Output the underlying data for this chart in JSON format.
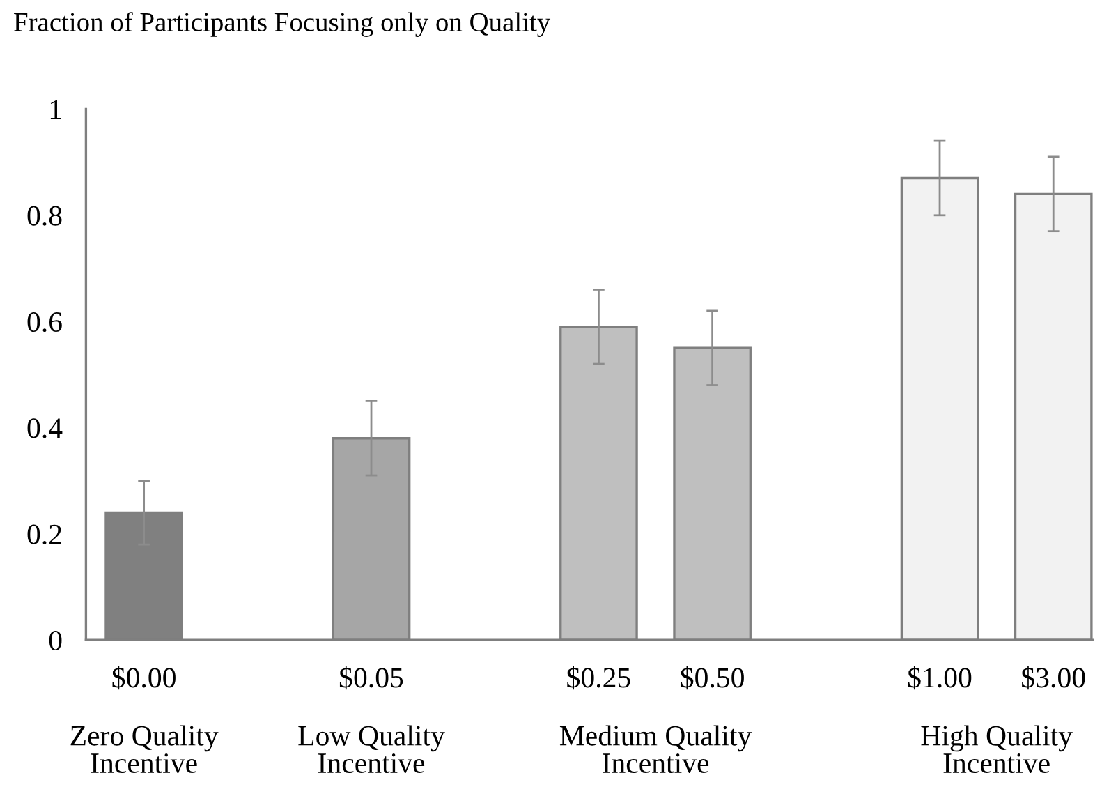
{
  "chart_data": {
    "type": "bar",
    "title": "Fraction of Participants Focusing only on Quality",
    "categories": [
      "$0.00",
      null,
      "$0.05",
      null,
      "$0.25",
      "$0.50",
      null,
      "$1.00",
      "$3.00"
    ],
    "values": [
      0.24,
      null,
      0.38,
      null,
      0.59,
      0.55,
      null,
      0.87,
      0.84
    ],
    "errors": [
      0.06,
      null,
      0.07,
      null,
      0.07,
      0.07,
      null,
      0.07,
      0.07
    ],
    "colors": [
      "#808080",
      "#ffffff",
      "#a6a6a6",
      "#ffffff",
      "#bfbfbf",
      "#bfbfbf",
      "#ffffff",
      "#f2f2f2",
      "#f2f2f2"
    ],
    "ylim": [
      0,
      1
    ],
    "yticks": [
      0,
      0.2,
      0.4,
      0.6,
      0.8,
      1
    ],
    "grid": false,
    "legend": false,
    "annotations": [
      "Zero Quality\nIncentive",
      "Low Quality\nIncentive",
      "Medium Quality\nIncentive",
      "High Quality\nIncentive"
    ]
  }
}
